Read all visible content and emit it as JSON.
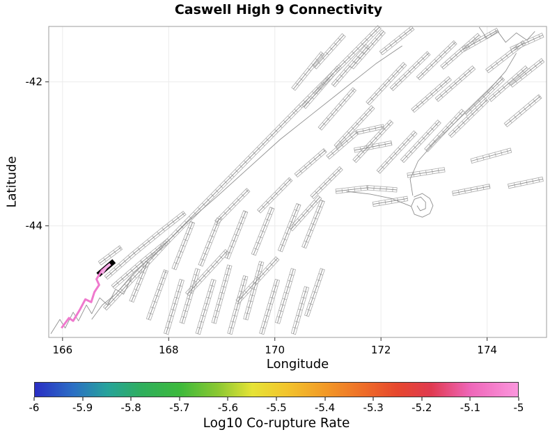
{
  "chart_data": {
    "type": "line",
    "subtype": "fault-network-map",
    "title": "Caswell High 9 Connectivity",
    "xlabel": "Longitude",
    "ylabel": "Latitude",
    "xlim": [
      165.74,
      175.12
    ],
    "ylim": [
      -45.55,
      -41.23
    ],
    "xticks": [
      166,
      168,
      170,
      172,
      174
    ],
    "yticks": [
      -42,
      -44
    ],
    "grid": true,
    "fault_color": "#ababab",
    "trace_color": "#8a8a8a",
    "coast_color": "#8f8f8f",
    "grid_color": "#ebebeb",
    "faults": [
      [
        [
          166.8,
          -45.15
        ],
        [
          168.0,
          -44.2
        ],
        [
          169.2,
          -43.3
        ],
        [
          170.4,
          -42.4
        ],
        [
          171.97,
          -41.24
        ]
      ],
      [
        [
          166.82,
          -44.72
        ],
        [
          167.35,
          -44.38
        ],
        [
          167.9,
          -44.05
        ],
        [
          168.3,
          -43.82
        ]
      ],
      [
        [
          166.95,
          -44.85
        ],
        [
          167.5,
          -44.5
        ],
        [
          168.0,
          -44.2
        ]
      ],
      [
        [
          166.7,
          -44.52
        ],
        [
          167.1,
          -44.3
        ]
      ],
      [
        [
          167.62,
          -45.3
        ],
        [
          167.95,
          -44.62
        ]
      ],
      [
        [
          167.95,
          -45.5
        ],
        [
          168.25,
          -44.75
        ]
      ],
      [
        [
          168.25,
          -45.35
        ],
        [
          168.55,
          -44.6
        ]
      ],
      [
        [
          168.55,
          -45.5
        ],
        [
          168.85,
          -44.75
        ]
      ],
      [
        [
          168.85,
          -45.35
        ],
        [
          169.15,
          -44.55
        ]
      ],
      [
        [
          169.15,
          -45.5
        ],
        [
          169.45,
          -44.7
        ]
      ],
      [
        [
          169.45,
          -45.3
        ],
        [
          169.75,
          -44.5
        ]
      ],
      [
        [
          169.75,
          -45.5
        ],
        [
          170.05,
          -44.75
        ]
      ],
      [
        [
          170.05,
          -45.35
        ],
        [
          170.35,
          -44.6
        ]
      ],
      [
        [
          170.35,
          -45.5
        ],
        [
          170.6,
          -44.85
        ]
      ],
      [
        [
          170.6,
          -45.25
        ],
        [
          170.9,
          -44.6
        ]
      ],
      [
        [
          168.1,
          -44.6
        ],
        [
          168.45,
          -43.95
        ]
      ],
      [
        [
          168.6,
          -44.55
        ],
        [
          168.95,
          -43.9
        ]
      ],
      [
        [
          169.1,
          -44.45
        ],
        [
          169.45,
          -43.8
        ]
      ],
      [
        [
          169.6,
          -44.4
        ],
        [
          169.95,
          -43.75
        ]
      ],
      [
        [
          170.1,
          -44.35
        ],
        [
          170.45,
          -43.7
        ]
      ],
      [
        [
          170.55,
          -44.3
        ],
        [
          170.9,
          -43.65
        ]
      ],
      [
        [
          168.35,
          -44.95
        ],
        [
          169.1,
          -44.35
        ]
      ],
      [
        [
          169.3,
          -45.05
        ],
        [
          170.05,
          -44.45
        ]
      ],
      [
        [
          168.9,
          -43.95
        ],
        [
          169.5,
          -43.5
        ]
      ],
      [
        [
          169.7,
          -43.8
        ],
        [
          170.3,
          -43.35
        ]
      ],
      [
        [
          170.3,
          -44.05
        ],
        [
          170.85,
          -43.6
        ]
      ],
      [
        [
          167.3,
          -45.05
        ],
        [
          167.6,
          -44.5
        ]
      ],
      [
        [
          171.15,
          -43.52
        ],
        [
          171.75,
          -43.47
        ],
        [
          172.3,
          -43.5
        ]
      ],
      [
        [
          172.5,
          -43.3
        ],
        [
          173.2,
          -43.22
        ]
      ],
      [
        [
          171.5,
          -42.95
        ],
        [
          172.2,
          -42.85
        ]
      ],
      [
        [
          170.4,
          -43.3
        ],
        [
          170.95,
          -42.95
        ]
      ],
      [
        [
          170.7,
          -43.6
        ],
        [
          171.25,
          -43.2
        ]
      ],
      [
        [
          171.0,
          -43.05
        ],
        [
          171.55,
          -42.7
        ],
        [
          172.05,
          -42.62
        ]
      ],
      [
        [
          171.85,
          -43.7
        ],
        [
          172.5,
          -43.62
        ]
      ],
      [
        [
          170.55,
          -42.35
        ],
        [
          171.2,
          -41.8
        ]
      ],
      [
        [
          170.85,
          -42.65
        ],
        [
          171.5,
          -42.1
        ]
      ],
      [
        [
          171.15,
          -42.9
        ],
        [
          171.85,
          -42.35
        ]
      ],
      [
        [
          171.5,
          -43.1
        ],
        [
          172.2,
          -42.55
        ]
      ],
      [
        [
          171.95,
          -43.25
        ],
        [
          172.65,
          -42.7
        ]
      ],
      [
        [
          172.4,
          -43.1
        ],
        [
          173.1,
          -42.55
        ]
      ],
      [
        [
          172.85,
          -42.95
        ],
        [
          173.55,
          -42.4
        ]
      ],
      [
        [
          173.3,
          -42.75
        ],
        [
          174.0,
          -42.25
        ]
      ],
      [
        [
          171.75,
          -42.3
        ],
        [
          172.45,
          -41.75
        ]
      ],
      [
        [
          172.2,
          -42.1
        ],
        [
          172.9,
          -41.6
        ]
      ],
      [
        [
          172.7,
          -41.95
        ],
        [
          173.4,
          -41.45
        ]
      ],
      [
        [
          173.15,
          -41.8
        ],
        [
          173.85,
          -41.35
        ]
      ],
      [
        [
          173.6,
          -42.45
        ],
        [
          174.3,
          -41.95
        ]
      ],
      [
        [
          174.05,
          -42.25
        ],
        [
          174.75,
          -41.8
        ]
      ],
      [
        [
          171.1,
          -42.05
        ],
        [
          171.75,
          -41.5
        ]
      ],
      [
        [
          171.45,
          -41.8
        ],
        [
          172.05,
          -41.3
        ]
      ],
      [
        [
          172.0,
          -41.6
        ],
        [
          172.6,
          -41.25
        ]
      ],
      [
        [
          173.55,
          -41.55
        ],
        [
          174.2,
          -41.28
        ]
      ],
      [
        [
          174.0,
          -41.85
        ],
        [
          174.7,
          -41.45
        ]
      ],
      [
        [
          174.35,
          -42.6
        ],
        [
          175.0,
          -42.2
        ]
      ],
      [
        [
          174.45,
          -42.05
        ],
        [
          175.05,
          -41.7
        ]
      ],
      [
        [
          170.75,
          -41.8
        ],
        [
          171.3,
          -41.35
        ]
      ],
      [
        [
          170.35,
          -42.1
        ],
        [
          170.9,
          -41.6
        ]
      ],
      [
        [
          173.7,
          -43.1
        ],
        [
          174.45,
          -42.95
        ]
      ],
      [
        [
          174.4,
          -43.45
        ],
        [
          175.05,
          -43.35
        ]
      ],
      [
        [
          173.35,
          -43.55
        ],
        [
          174.05,
          -43.45
        ]
      ],
      [
        [
          174.45,
          -41.55
        ],
        [
          175.05,
          -41.35
        ]
      ],
      [
        [
          172.6,
          -42.4
        ],
        [
          173.3,
          -41.95
        ]
      ],
      [
        [
          173.05,
          -42.25
        ],
        [
          173.75,
          -41.8
        ]
      ]
    ],
    "coastlines": [
      [
        [
          166.55,
          -45.3
        ],
        [
          166.75,
          -45.1
        ],
        [
          167.0,
          -44.95
        ],
        [
          167.35,
          -44.65
        ],
        [
          167.8,
          -44.35
        ],
        [
          168.35,
          -43.95
        ],
        [
          168.9,
          -43.6
        ],
        [
          169.5,
          -43.2
        ],
        [
          170.1,
          -42.8
        ],
        [
          170.7,
          -42.45
        ],
        [
          171.3,
          -42.1
        ],
        [
          171.9,
          -41.75
        ],
        [
          172.4,
          -41.5
        ]
      ],
      [
        [
          165.78,
          -45.5
        ],
        [
          165.95,
          -45.3
        ],
        [
          166.05,
          -45.42
        ],
        [
          166.2,
          -45.2
        ],
        [
          166.3,
          -45.32
        ],
        [
          166.45,
          -45.1
        ],
        [
          166.55,
          -45.22
        ],
        [
          166.7,
          -45.0
        ],
        [
          166.85,
          -45.1
        ],
        [
          167.0,
          -44.88
        ],
        [
          167.15,
          -44.95
        ],
        [
          167.3,
          -44.72
        ]
      ],
      [
        [
          172.62,
          -43.6
        ],
        [
          172.78,
          -43.55
        ],
        [
          172.92,
          -43.62
        ],
        [
          172.98,
          -43.72
        ],
        [
          172.92,
          -43.83
        ],
        [
          172.78,
          -43.88
        ],
        [
          172.63,
          -43.84
        ],
        [
          172.57,
          -43.73
        ],
        [
          172.63,
          -43.63
        ],
        [
          172.75,
          -43.6
        ],
        [
          172.84,
          -43.67
        ],
        [
          172.84,
          -43.76
        ],
        [
          172.74,
          -43.79
        ],
        [
          172.68,
          -43.72
        ]
      ],
      [
        [
          172.6,
          -43.58
        ],
        [
          172.55,
          -43.35
        ],
        [
          172.7,
          -43.1
        ],
        [
          173.0,
          -42.85
        ],
        [
          173.35,
          -42.6
        ],
        [
          173.7,
          -42.35
        ],
        [
          174.05,
          -42.1
        ],
        [
          174.35,
          -41.85
        ],
        [
          174.55,
          -41.6
        ]
      ],
      [
        [
          172.57,
          -43.73
        ],
        [
          172.2,
          -43.62
        ],
        [
          171.8,
          -43.56
        ],
        [
          171.35,
          -43.52
        ]
      ],
      [
        [
          173.85,
          -41.24
        ],
        [
          174.0,
          -41.4
        ],
        [
          174.2,
          -41.3
        ],
        [
          174.35,
          -41.45
        ],
        [
          174.55,
          -41.32
        ],
        [
          174.75,
          -41.42
        ],
        [
          174.9,
          -41.3
        ]
      ]
    ],
    "highlights": [
      {
        "name": "source-fault-black",
        "color": "#000000",
        "width": 7.5,
        "points": [
          [
            166.67,
            -44.68
          ],
          [
            166.97,
            -44.49
          ]
        ]
      },
      {
        "name": "corupture-trace-pink",
        "color": "#ef79cd",
        "width": 3,
        "points": [
          [
            165.98,
            -45.42
          ],
          [
            166.12,
            -45.28
          ],
          [
            166.2,
            -45.32
          ],
          [
            166.33,
            -45.16
          ],
          [
            166.43,
            -45.02
          ],
          [
            166.54,
            -45.06
          ],
          [
            166.6,
            -44.92
          ],
          [
            166.69,
            -44.82
          ],
          [
            166.64,
            -44.74
          ],
          [
            166.74,
            -44.62
          ],
          [
            166.86,
            -44.55
          ]
        ]
      },
      {
        "name": "corupture-trace-pink-light",
        "color": "#f6ace6",
        "width": 4,
        "points": [
          [
            166.74,
            -44.66
          ],
          [
            166.82,
            -44.58
          ],
          [
            166.9,
            -44.53
          ]
        ]
      }
    ],
    "colorbar": {
      "label": "Log10 Co-rupture Rate",
      "min": -6,
      "max": -5,
      "ticks": [
        "-6",
        "-5.9",
        "-5.8",
        "-5.7",
        "-5.6",
        "-5.5",
        "-5.4",
        "-5.3",
        "-5.2",
        "-5.1",
        "-5"
      ],
      "stops": [
        [
          0.0,
          "#2a2ec4"
        ],
        [
          0.08,
          "#2b6fc4"
        ],
        [
          0.15,
          "#27a39b"
        ],
        [
          0.22,
          "#2fae5e"
        ],
        [
          0.3,
          "#3db93c"
        ],
        [
          0.38,
          "#8cc832"
        ],
        [
          0.45,
          "#e6e336"
        ],
        [
          0.52,
          "#f2c52d"
        ],
        [
          0.6,
          "#f29a27"
        ],
        [
          0.68,
          "#ee6d28"
        ],
        [
          0.75,
          "#e6472e"
        ],
        [
          0.82,
          "#e03a50"
        ],
        [
          0.9,
          "#ee66b8"
        ],
        [
          1.0,
          "#fb96dd"
        ]
      ]
    }
  }
}
